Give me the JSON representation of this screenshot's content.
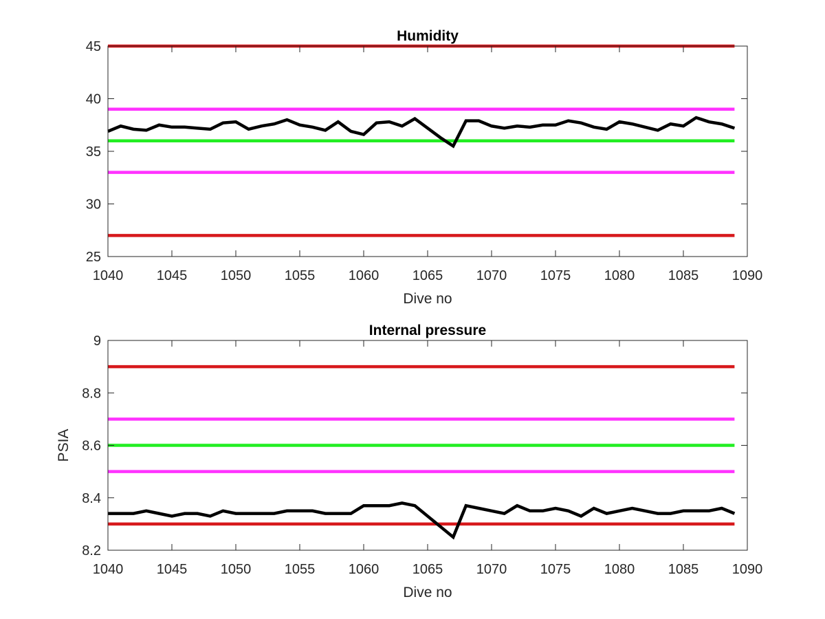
{
  "chart_data": [
    {
      "type": "line",
      "title": "Humidity",
      "xlabel": "Dive no",
      "ylabel": "",
      "xlim": [
        1040,
        1090
      ],
      "ylim": [
        25,
        45
      ],
      "xticks": [
        1040,
        1045,
        1050,
        1055,
        1060,
        1065,
        1070,
        1075,
        1080,
        1085,
        1090
      ],
      "yticks": [
        25,
        30,
        35,
        40,
        45
      ],
      "grid": false,
      "thresholds": [
        {
          "y": 45,
          "color": "#d7191c"
        },
        {
          "y": 39,
          "color": "#ff33ff"
        },
        {
          "y": 36,
          "color": "#22ee22"
        },
        {
          "y": 33,
          "color": "#ff33ff"
        },
        {
          "y": 27,
          "color": "#d7191c"
        }
      ],
      "series": [
        {
          "color": "#000000",
          "x": [
            1040,
            1041,
            1042,
            1043,
            1044,
            1045,
            1046,
            1047,
            1048,
            1049,
            1050,
            1051,
            1052,
            1053,
            1054,
            1055,
            1056,
            1057,
            1058,
            1059,
            1060,
            1061,
            1062,
            1063,
            1064,
            1065,
            1066,
            1067,
            1068,
            1069,
            1070,
            1071,
            1072,
            1073,
            1074,
            1075,
            1076,
            1077,
            1078,
            1079,
            1080,
            1081,
            1082,
            1083,
            1084,
            1085,
            1086,
            1087,
            1088,
            1089
          ],
          "y": [
            36.9,
            37.4,
            37.1,
            37.0,
            37.5,
            37.3,
            37.3,
            37.2,
            37.1,
            37.7,
            37.8,
            37.1,
            37.4,
            37.6,
            38.0,
            37.5,
            37.3,
            37.0,
            37.8,
            36.9,
            36.6,
            37.7,
            37.8,
            37.4,
            38.1,
            37.2,
            36.3,
            35.5,
            37.9,
            37.9,
            37.4,
            37.2,
            37.4,
            37.3,
            37.5,
            37.5,
            37.9,
            37.7,
            37.3,
            37.1,
            37.8,
            37.6,
            37.3,
            37.0,
            37.6,
            37.4,
            38.2,
            37.8,
            37.6,
            37.2
          ]
        }
      ]
    },
    {
      "type": "line",
      "title": "Internal pressure",
      "xlabel": "Dive no",
      "ylabel": "PSIA",
      "xlim": [
        1040,
        1090
      ],
      "ylim": [
        8.2,
        9.0
      ],
      "xticks": [
        1040,
        1045,
        1050,
        1055,
        1060,
        1065,
        1070,
        1075,
        1080,
        1085,
        1090
      ],
      "yticks": [
        8.2,
        8.4,
        8.6,
        8.8,
        9.0
      ],
      "ytick_labels": [
        "8.2",
        "8.4",
        "8.6",
        "8.8",
        "9"
      ],
      "grid": false,
      "thresholds": [
        {
          "y": 8.9,
          "color": "#d7191c"
        },
        {
          "y": 8.7,
          "color": "#ff33ff"
        },
        {
          "y": 8.6,
          "color": "#22ee22"
        },
        {
          "y": 8.5,
          "color": "#ff33ff"
        },
        {
          "y": 8.3,
          "color": "#d7191c"
        }
      ],
      "series": [
        {
          "color": "#000000",
          "x": [
            1040,
            1041,
            1042,
            1043,
            1044,
            1045,
            1046,
            1047,
            1048,
            1049,
            1050,
            1051,
            1052,
            1053,
            1054,
            1055,
            1056,
            1057,
            1058,
            1059,
            1060,
            1061,
            1062,
            1063,
            1064,
            1065,
            1066,
            1067,
            1068,
            1069,
            1070,
            1071,
            1072,
            1073,
            1074,
            1075,
            1076,
            1077,
            1078,
            1079,
            1080,
            1081,
            1082,
            1083,
            1084,
            1085,
            1086,
            1087,
            1088,
            1089
          ],
          "y": [
            8.34,
            8.34,
            8.34,
            8.35,
            8.34,
            8.33,
            8.34,
            8.34,
            8.33,
            8.35,
            8.34,
            8.34,
            8.34,
            8.34,
            8.35,
            8.35,
            8.35,
            8.34,
            8.34,
            8.34,
            8.37,
            8.37,
            8.37,
            8.38,
            8.37,
            8.33,
            8.29,
            8.25,
            8.37,
            8.36,
            8.35,
            8.34,
            8.37,
            8.35,
            8.35,
            8.36,
            8.35,
            8.33,
            8.36,
            8.34,
            8.35,
            8.36,
            8.35,
            8.34,
            8.34,
            8.35,
            8.35,
            8.35,
            8.36,
            8.34
          ]
        }
      ]
    }
  ]
}
